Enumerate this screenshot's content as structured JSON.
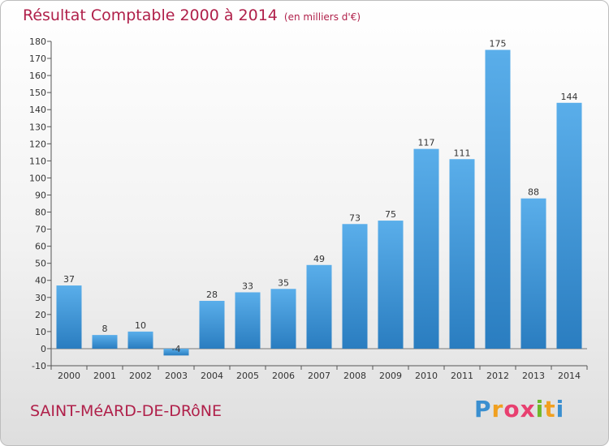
{
  "chart_data": {
    "type": "bar",
    "title": "Résultat Comptable 2000 à 2014",
    "subtitle": "(en milliers d'€)",
    "categories": [
      "2000",
      "2001",
      "2002",
      "2003",
      "2004",
      "2005",
      "2006",
      "2007",
      "2008",
      "2009",
      "2010",
      "2011",
      "2012",
      "2013",
      "2014"
    ],
    "values": [
      37,
      8,
      10,
      -4,
      28,
      33,
      35,
      49,
      73,
      75,
      117,
      111,
      175,
      88,
      144
    ],
    "ylim": [
      -10,
      180
    ],
    "yticks": [
      -10,
      0,
      10,
      20,
      30,
      40,
      50,
      60,
      70,
      80,
      90,
      100,
      110,
      120,
      130,
      140,
      150,
      160,
      170,
      180
    ],
    "xlabel": "",
    "ylabel": "",
    "grid": false,
    "colors": {
      "bar_top": "#5aaeea",
      "bar_bottom": "#2a7dc0",
      "title": "#b0204a"
    }
  },
  "footer": {
    "commune": "SAINT-MéARD-DE-DRôNE"
  },
  "logo": {
    "letters": [
      "P",
      "r",
      "o",
      "x",
      "i",
      "t",
      "i"
    ],
    "colors": [
      "#3a8fd0",
      "#f0a020",
      "#e84070",
      "#e84070",
      "#70b82a",
      "#f0a020",
      "#3a8fd0"
    ]
  }
}
